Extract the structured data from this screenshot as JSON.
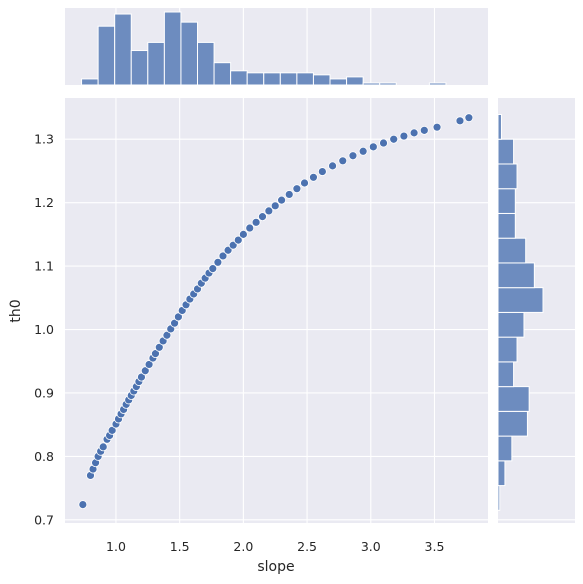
{
  "chart_data": {
    "type": "scatter",
    "style": {
      "background": "#eaeaf2",
      "grid_color": "#ffffff",
      "point_color": "#4c72b0",
      "bar_color": "#6d8cbf",
      "text_color": "#262626"
    },
    "grid": true,
    "xlabel": "slope",
    "ylabel": "th0",
    "xlim": [
      0.6,
      3.92
    ],
    "ylim": [
      0.695,
      1.365
    ],
    "xticks": [
      1.0,
      1.5,
      2.0,
      2.5,
      3.0,
      3.5
    ],
    "xtick_labels": [
      "1.0",
      "1.5",
      "2.0",
      "2.5",
      "3.0",
      "3.5"
    ],
    "yticks": [
      0.7,
      0.8,
      0.9,
      1.0,
      1.1,
      1.2,
      1.3
    ],
    "ytick_labels": [
      "0.7",
      "0.8",
      "0.9",
      "1.0",
      "1.1",
      "1.2",
      "1.3"
    ],
    "scatter_points": [
      [
        0.74,
        0.724
      ],
      [
        0.8,
        0.77
      ],
      [
        0.82,
        0.78
      ],
      [
        0.84,
        0.79
      ],
      [
        0.86,
        0.8
      ],
      [
        0.88,
        0.808
      ],
      [
        0.9,
        0.815
      ],
      [
        0.93,
        0.827
      ],
      [
        0.95,
        0.833
      ],
      [
        0.97,
        0.841
      ],
      [
        1.0,
        0.851
      ],
      [
        1.02,
        0.859
      ],
      [
        1.04,
        0.867
      ],
      [
        1.06,
        0.874
      ],
      [
        1.08,
        0.882
      ],
      [
        1.1,
        0.889
      ],
      [
        1.12,
        0.896
      ],
      [
        1.14,
        0.903
      ],
      [
        1.16,
        0.91
      ],
      [
        1.18,
        0.918
      ],
      [
        1.2,
        0.925
      ],
      [
        1.23,
        0.935
      ],
      [
        1.26,
        0.945
      ],
      [
        1.29,
        0.955
      ],
      [
        1.31,
        0.962
      ],
      [
        1.34,
        0.972
      ],
      [
        1.37,
        0.982
      ],
      [
        1.4,
        0.991
      ],
      [
        1.43,
        1.001
      ],
      [
        1.46,
        1.01
      ],
      [
        1.49,
        1.02
      ],
      [
        1.52,
        1.03
      ],
      [
        1.55,
        1.039
      ],
      [
        1.58,
        1.048
      ],
      [
        1.61,
        1.056
      ],
      [
        1.64,
        1.064
      ],
      [
        1.67,
        1.073
      ],
      [
        1.7,
        1.081
      ],
      [
        1.73,
        1.089
      ],
      [
        1.76,
        1.096
      ],
      [
        1.8,
        1.106
      ],
      [
        1.84,
        1.116
      ],
      [
        1.88,
        1.125
      ],
      [
        1.92,
        1.133
      ],
      [
        1.96,
        1.141
      ],
      [
        2.0,
        1.15
      ],
      [
        2.05,
        1.16
      ],
      [
        2.1,
        1.169
      ],
      [
        2.15,
        1.178
      ],
      [
        2.2,
        1.187
      ],
      [
        2.25,
        1.195
      ],
      [
        2.3,
        1.204
      ],
      [
        2.36,
        1.213
      ],
      [
        2.42,
        1.222
      ],
      [
        2.48,
        1.231
      ],
      [
        2.55,
        1.24
      ],
      [
        2.62,
        1.249
      ],
      [
        2.7,
        1.258
      ],
      [
        2.78,
        1.266
      ],
      [
        2.86,
        1.274
      ],
      [
        2.94,
        1.281
      ],
      [
        3.02,
        1.288
      ],
      [
        3.1,
        1.294
      ],
      [
        3.18,
        1.3
      ],
      [
        3.26,
        1.305
      ],
      [
        3.34,
        1.31
      ],
      [
        3.42,
        1.314
      ],
      [
        3.52,
        1.319
      ],
      [
        3.7,
        1.329
      ],
      [
        3.77,
        1.334
      ]
    ],
    "x_histogram": {
      "bin_edges": [
        0.73,
        0.86,
        0.99,
        1.12,
        1.25,
        1.38,
        1.51,
        1.64,
        1.77,
        1.9,
        2.03,
        2.16,
        2.29,
        2.42,
        2.55,
        2.68,
        2.81,
        2.94,
        3.07,
        3.2,
        3.33,
        3.46,
        3.59,
        3.72
      ],
      "counts": [
        3,
        29,
        35,
        17,
        21,
        36,
        31,
        21,
        11,
        7,
        6,
        6,
        6,
        6,
        5,
        3,
        4,
        1,
        1,
        0,
        0,
        1,
        0
      ]
    },
    "y_histogram": {
      "bin_edges": [
        0.715,
        0.754,
        0.793,
        0.832,
        0.871,
        0.91,
        0.949,
        0.988,
        1.027,
        1.066,
        1.105,
        1.144,
        1.183,
        1.222,
        1.261,
        1.3,
        1.339
      ],
      "counts": [
        1,
        4,
        8,
        17,
        18,
        9,
        11,
        15,
        26,
        21,
        16,
        10,
        10,
        11,
        9,
        2
      ]
    }
  }
}
